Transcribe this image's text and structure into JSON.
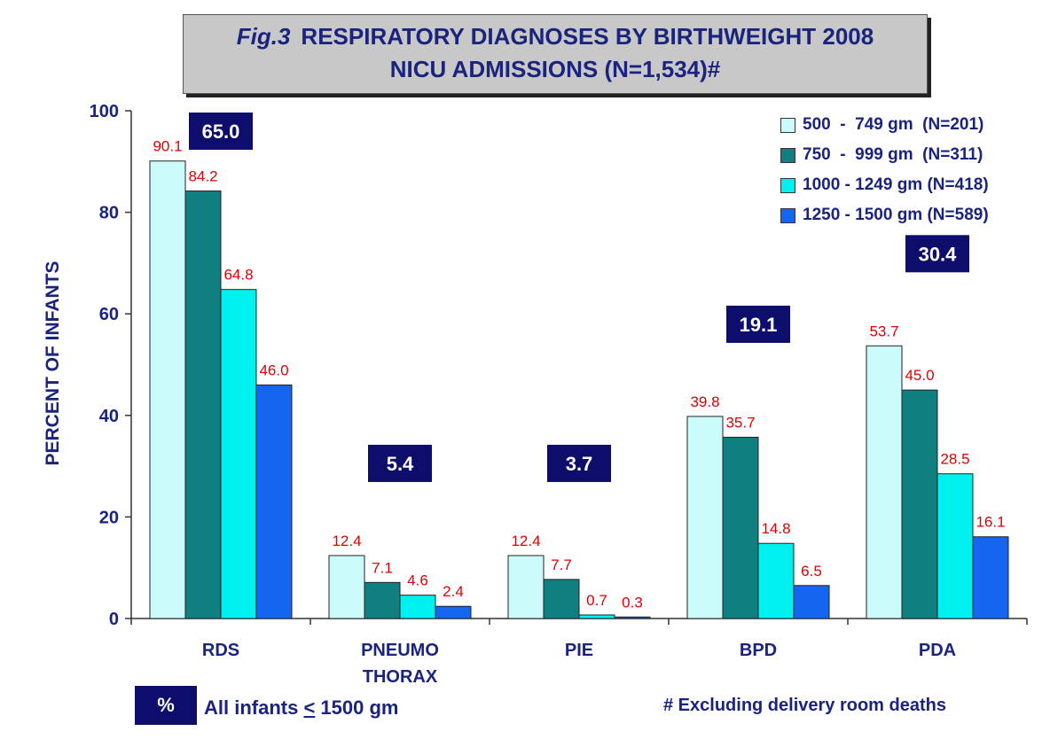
{
  "title": {
    "fig_label": "Fig.3",
    "line1": "RESPIRATORY DIAGNOSES BY BIRTHWEIGHT 2008",
    "line2": "NICU ADMISSIONS (N=1,534)#"
  },
  "footer": {
    "badge": "%",
    "all_infants_prefix": "All infants ",
    "all_infants_le": "<",
    "all_infants_suffix": " 1500 gm",
    "note": "#  Excluding delivery room deaths"
  },
  "chart_data": {
    "type": "bar",
    "ylabel": "PERCENT OF INFANTS",
    "ylim": [
      0,
      100
    ],
    "yticks": [
      0,
      20,
      40,
      60,
      80,
      100
    ],
    "categories": [
      {
        "label": "RDS"
      },
      {
        "label": "PNEUMO\nTHORAX"
      },
      {
        "label": "PIE"
      },
      {
        "label": "BPD"
      },
      {
        "label": "PDA"
      }
    ],
    "series": [
      {
        "name": "500  -  749 gm  (N=201)",
        "color": "#ccfbfb",
        "values": [
          90.1,
          12.4,
          12.4,
          39.8,
          53.7
        ]
      },
      {
        "name": "750  -  999 gm  (N=311)",
        "color": "#0f7f7f",
        "values": [
          84.2,
          7.1,
          7.7,
          35.7,
          45.0
        ]
      },
      {
        "name": "1000 - 1249 gm (N=418)",
        "color": "#00f0f0",
        "values": [
          64.8,
          4.6,
          0.7,
          14.8,
          28.5
        ]
      },
      {
        "name": "1250 - 1500 gm (N=589)",
        "color": "#1565f0",
        "values": [
          46.0,
          2.4,
          0.3,
          6.5,
          16.1
        ]
      }
    ],
    "all_infants_percent": [
      65.0,
      5.4,
      3.7,
      19.1,
      30.4
    ],
    "value_label_color": "#e00000",
    "badge_color": "#0d0d6b",
    "axis_text_color": "#1a237e",
    "legend_position": "top-right",
    "grid": false
  }
}
